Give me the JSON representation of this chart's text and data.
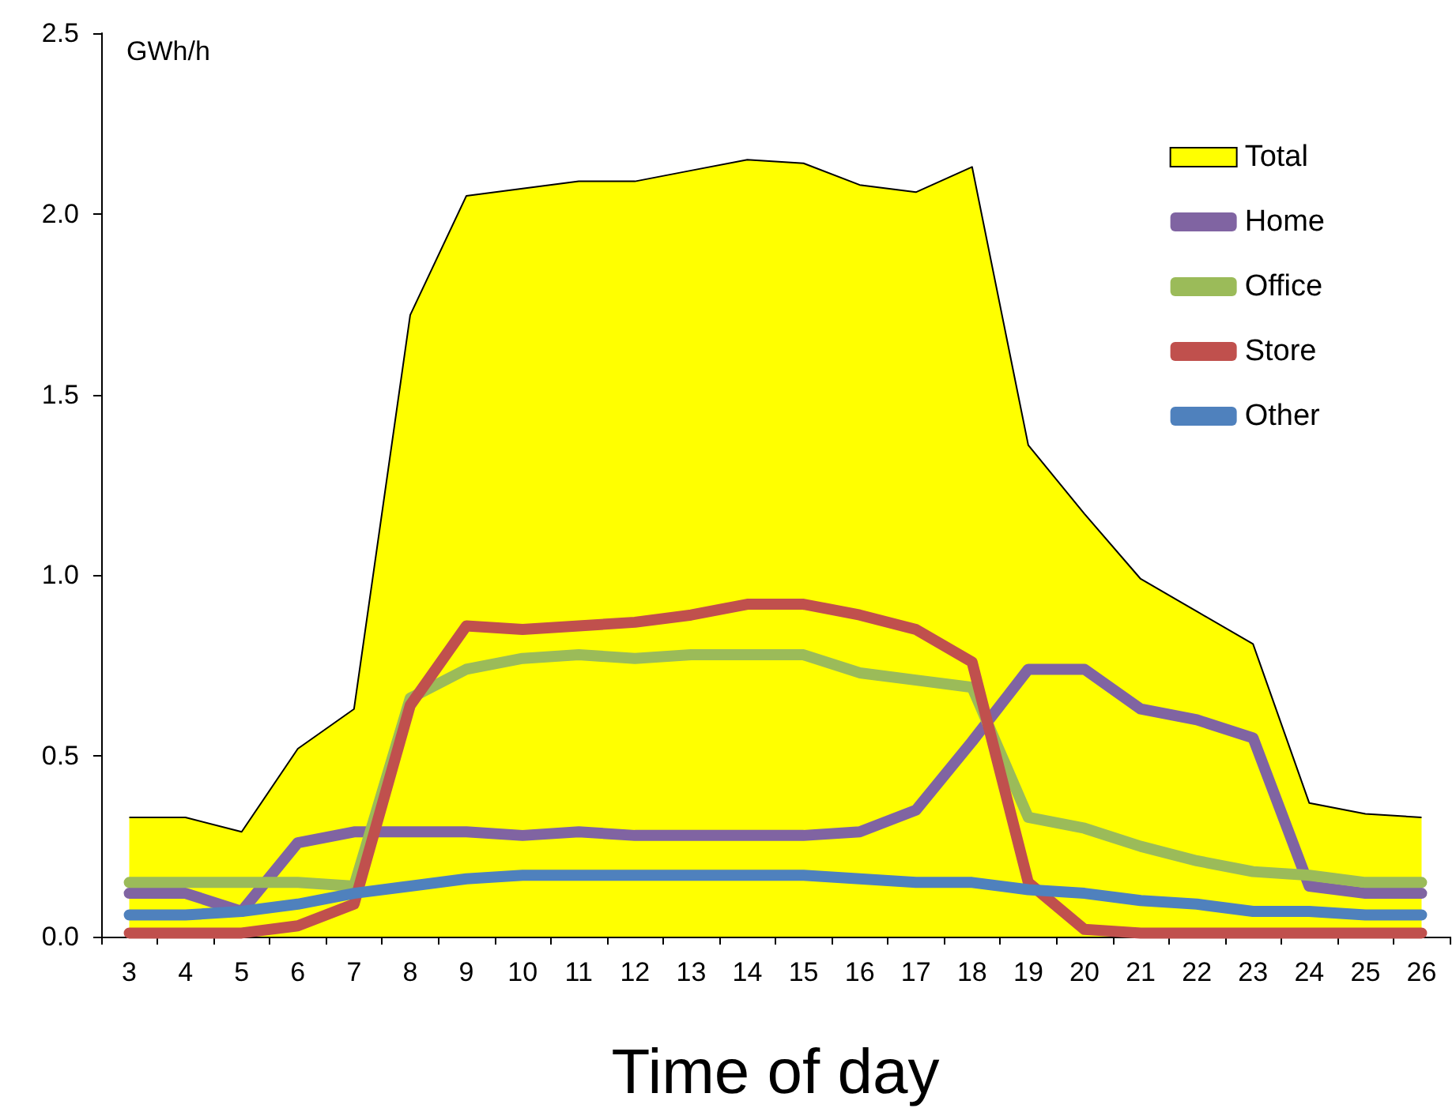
{
  "chart_data": {
    "type": "line",
    "xlabel": "Time of day",
    "ylabel": "GWh/h",
    "categories": [
      "3",
      "4",
      "5",
      "6",
      "7",
      "8",
      "9",
      "10",
      "11",
      "12",
      "13",
      "14",
      "15",
      "16",
      "17",
      "18",
      "19",
      "20",
      "21",
      "22",
      "23",
      "24",
      "25",
      "26"
    ],
    "ylim": [
      0,
      2.5
    ],
    "yticks": [
      {
        "value": 0,
        "label": "0.0"
      },
      {
        "value": 0.5,
        "label": "0.5"
      },
      {
        "value": 1,
        "label": "1.0"
      },
      {
        "value": 1.5,
        "label": "1.5"
      },
      {
        "value": 2,
        "label": "2.0"
      },
      {
        "value": 2.5,
        "label": "2.5"
      }
    ],
    "grid": false,
    "legend": "top right",
    "marker": "none",
    "line_style": "solid",
    "series": [
      {
        "name": "Total",
        "type": "area",
        "color": "#ffff00",
        "values": [
          0.33,
          0.33,
          0.29,
          0.52,
          0.63,
          1.72,
          2.05,
          2.07,
          2.09,
          2.09,
          2.12,
          2.15,
          2.14,
          2.08,
          2.06,
          2.13,
          1.36,
          1.17,
          0.99,
          0.9,
          0.81,
          0.37,
          0.34,
          0.33
        ]
      },
      {
        "name": "Home",
        "color": "#8064a2",
        "values": [
          0.12,
          0.12,
          0.07,
          0.26,
          0.29,
          0.29,
          0.29,
          0.28,
          0.29,
          0.28,
          0.28,
          0.28,
          0.28,
          0.29,
          0.35,
          0.54,
          0.74,
          0.74,
          0.63,
          0.6,
          0.55,
          0.14,
          0.12,
          0.12
        ]
      },
      {
        "name": "Office",
        "color": "#9bbb59",
        "values": [
          0.15,
          0.15,
          0.15,
          0.15,
          0.14,
          0.66,
          0.74,
          0.77,
          0.78,
          0.77,
          0.78,
          0.78,
          0.78,
          0.73,
          0.71,
          0.69,
          0.33,
          0.3,
          0.25,
          0.21,
          0.18,
          0.17,
          0.15,
          0.15
        ]
      },
      {
        "name": "Store",
        "color": "#c0504d",
        "values": [
          0.01,
          0.01,
          0.01,
          0.03,
          0.09,
          0.64,
          0.86,
          0.85,
          0.86,
          0.87,
          0.89,
          0.92,
          0.92,
          0.89,
          0.85,
          0.76,
          0.15,
          0.02,
          0.01,
          0.01,
          0.01,
          0.01,
          0.01,
          0.01
        ]
      },
      {
        "name": "Other",
        "color": "#4f81bd",
        "values": [
          0.06,
          0.06,
          0.07,
          0.09,
          0.12,
          0.14,
          0.16,
          0.17,
          0.17,
          0.17,
          0.17,
          0.17,
          0.17,
          0.16,
          0.15,
          0.15,
          0.13,
          0.12,
          0.1,
          0.09,
          0.07,
          0.07,
          0.06,
          0.06
        ]
      }
    ]
  }
}
